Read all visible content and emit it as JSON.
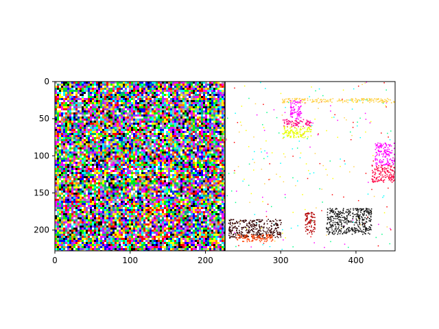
{
  "chart_data": {
    "type": "heatmap",
    "title": "",
    "xlabel": "",
    "ylabel": "",
    "xlim": [
      0,
      452
    ],
    "ylim": [
      228,
      0
    ],
    "x_ticks": [
      0,
      100,
      200,
      300,
      400
    ],
    "y_ticks": [
      0,
      50,
      100,
      150,
      200
    ],
    "x_tick_labels": [
      "0",
      "100",
      "200",
      "300",
      "400"
    ],
    "y_tick_labels": [
      "0",
      "50",
      "100",
      "150",
      "200"
    ],
    "panels": [
      {
        "name": "left",
        "x_range": [
          0,
          226
        ],
        "content": "dense multicolor noise"
      },
      {
        "name": "right",
        "x_range": [
          226,
          452
        ],
        "content": "mostly white with colored pixel clusters"
      }
    ],
    "clusters": [
      {
        "x": [
          300,
          460
        ],
        "y": [
          22,
          28
        ],
        "color": "#ffd24a"
      },
      {
        "x": [
          312,
          327
        ],
        "y": [
          24,
          50
        ],
        "color": "#ff00ff"
      },
      {
        "x": [
          302,
          340
        ],
        "y": [
          50,
          60
        ],
        "color": "#ff0080"
      },
      {
        "x": [
          302,
          340
        ],
        "y": [
          60,
          75
        ],
        "color": "#e8ff00"
      },
      {
        "x": [
          425,
          452
        ],
        "y": [
          82,
          112
        ],
        "color": "#ff00ff"
      },
      {
        "x": [
          420,
          452
        ],
        "y": [
          112,
          135
        ],
        "color": "#ff0040"
      },
      {
        "x": [
          230,
          300
        ],
        "y": [
          185,
          210
        ],
        "color": "#330000"
      },
      {
        "x": [
          360,
          420
        ],
        "y": [
          170,
          205
        ],
        "color": "#111111"
      },
      {
        "x": [
          332,
          345
        ],
        "y": [
          175,
          205
        ],
        "color": "#b30000"
      },
      {
        "x": [
          240,
          290
        ],
        "y": [
          205,
          215
        ],
        "color": "#ff4000"
      }
    ]
  }
}
